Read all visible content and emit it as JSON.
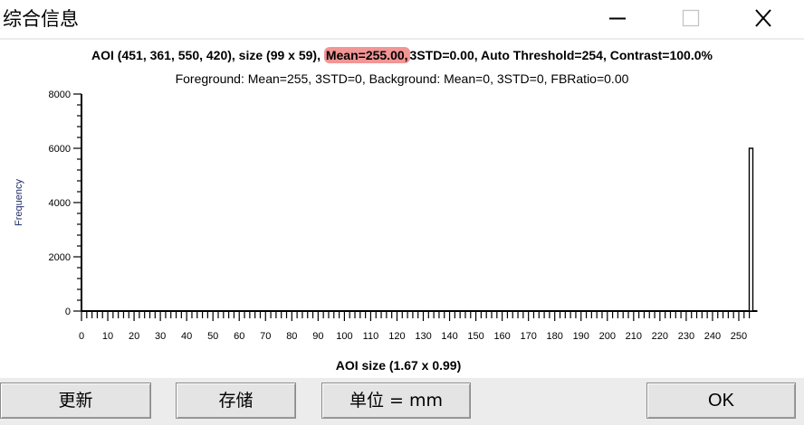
{
  "window": {
    "title": "综合信息",
    "controls": [
      "minimize-icon",
      "maximize-icon",
      "close-icon"
    ]
  },
  "header": {
    "line1_pre": "AOI (451, 361, 550, 420), size (99 x 59),",
    "line1_highlight": "Mean=255.00,",
    "line1_post": "3STD=0.00, Auto Threshold=254, Contrast=100.0%",
    "line2": "Foreground: Mean=255, 3STD=0, Background: Mean=0, 3STD=0, FBRatio=0.00",
    "highlight_color": "#f29595"
  },
  "chart_data": {
    "type": "bar",
    "ylabel": "Frequency",
    "xlabel": "AOI size (1.67 x 0.99)",
    "xlim": [
      0,
      255
    ],
    "ylim": [
      0,
      8000
    ],
    "x_ticks": [
      0,
      10,
      20,
      30,
      40,
      50,
      60,
      70,
      80,
      90,
      100,
      110,
      120,
      130,
      140,
      150,
      160,
      170,
      180,
      190,
      200,
      210,
      220,
      230,
      240,
      250
    ],
    "y_ticks": [
      0,
      2000,
      4000,
      6000,
      8000
    ],
    "bars": [
      {
        "x": 255,
        "value": 6000
      }
    ]
  },
  "buttons": {
    "refresh": "更新",
    "save": "存储",
    "unit": "单位 = mm",
    "ok": "OK"
  }
}
